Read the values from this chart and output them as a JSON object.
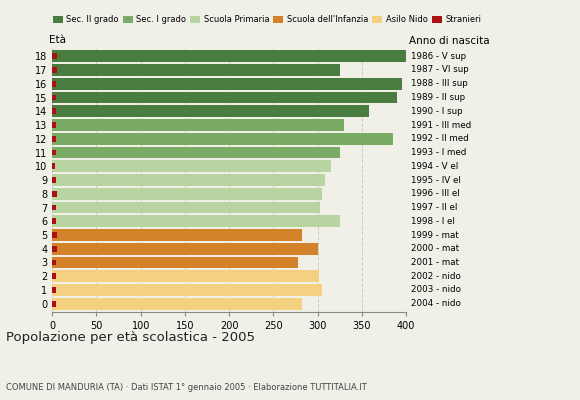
{
  "ages": [
    18,
    17,
    16,
    15,
    14,
    13,
    12,
    11,
    10,
    9,
    8,
    7,
    6,
    5,
    4,
    3,
    2,
    1,
    0
  ],
  "values": [
    400,
    325,
    395,
    390,
    358,
    330,
    385,
    325,
    315,
    308,
    305,
    303,
    325,
    282,
    300,
    278,
    302,
    305,
    282
  ],
  "stranieri": [
    5,
    5,
    4,
    4,
    4,
    4,
    4,
    4,
    3,
    4,
    5,
    4,
    4,
    5,
    5,
    4,
    4,
    4,
    4
  ],
  "right_labels": [
    "1986 - V sup",
    "1987 - VI sup",
    "1988 - III sup",
    "1989 - II sup",
    "1990 - I sup",
    "1991 - III med",
    "1992 - II med",
    "1993 - I med",
    "1994 - V el",
    "1995 - IV el",
    "1996 - III el",
    "1997 - II el",
    "1998 - I el",
    "1999 - mat",
    "2000 - mat",
    "2001 - mat",
    "2002 - nido",
    "2003 - nido",
    "2004 - nido"
  ],
  "bar_colors": [
    "#4a7c40",
    "#4a7c40",
    "#4a7c40",
    "#4a7c40",
    "#4a7c40",
    "#7aab65",
    "#7aab65",
    "#7aab65",
    "#b8d4a0",
    "#b8d4a0",
    "#b8d4a0",
    "#b8d4a0",
    "#b8d4a0",
    "#d4822a",
    "#d4822a",
    "#d4822a",
    "#f5d080",
    "#f5d080",
    "#f5d080"
  ],
  "stranieri_color": "#aa1111",
  "legend_labels": [
    "Sec. II grado",
    "Sec. I grado",
    "Scuola Primaria",
    "Scuola dell'Infanzia",
    "Asilo Nido",
    "Stranieri"
  ],
  "legend_colors": [
    "#4a7c40",
    "#7aab65",
    "#b8d4a0",
    "#d4822a",
    "#f5d080",
    "#aa1111"
  ],
  "title": "Popolazione per età scolastica - 2005",
  "subtitle": "COMUNE DI MANDURIA (TA) · Dati ISTAT 1° gennaio 2005 · Elaborazione TUTTITALIA.IT",
  "xlabel_eta": "Età",
  "xlabel_anno": "Anno di nascita",
  "xlim": [
    0,
    400
  ],
  "xticks": [
    0,
    50,
    100,
    150,
    200,
    250,
    300,
    350,
    400
  ],
  "background_color": "#f0f0e8",
  "grid_color": "#ccccbb",
  "bar_height": 0.85
}
